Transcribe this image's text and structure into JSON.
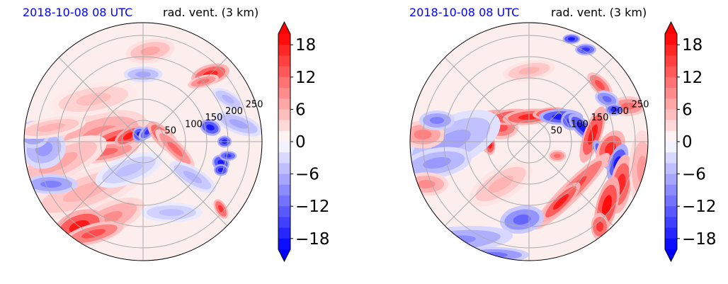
{
  "panels": [
    {
      "id": "left",
      "title_date": "2018-10-08 08 UTC",
      "title_var": "rad. vent. (3 km)"
    },
    {
      "id": "right",
      "title_date": "2018-10-08 08 UTC",
      "title_var": "rad. vent. (3 km)"
    }
  ],
  "chart_data": [
    {
      "type": "heatmap",
      "projection": "polar",
      "title_left": "2018-10-08 08 UTC",
      "title_right": "rad. vent. (3 km)",
      "range_rings_labels": [
        "50",
        "100",
        "150",
        "200",
        "250"
      ],
      "radial_spokes": 8,
      "colorbar": {
        "ticks": [
          18,
          12,
          6,
          0,
          -6,
          -12,
          -18
        ],
        "tick_labels": [
          "18",
          "12",
          "6",
          "0",
          "−6",
          "−12",
          "−18"
        ],
        "vmin": -20,
        "vmax": 20,
        "extend": "both",
        "cmap": "bwr",
        "colors": {
          "max": "#ff0000",
          "min": "#0000ff",
          "zero": "#ffffff"
        }
      }
    },
    {
      "type": "heatmap",
      "projection": "polar",
      "title_left": "2018-10-08 08 UTC",
      "title_right": "rad. vent. (3 km)",
      "range_rings_labels": [
        "50",
        "100",
        "150",
        "200",
        "250"
      ],
      "radial_spokes": 8,
      "colorbar": {
        "ticks": [
          18,
          12,
          6,
          0,
          -6,
          -12,
          -18
        ],
        "tick_labels": [
          "18",
          "12",
          "6",
          "0",
          "−6",
          "−12",
          "−18"
        ],
        "vmin": -20,
        "vmax": 20,
        "extend": "both",
        "cmap": "bwr",
        "colors": {
          "max": "#ff0000",
          "min": "#0000ff",
          "zero": "#ffffff"
        }
      }
    }
  ]
}
